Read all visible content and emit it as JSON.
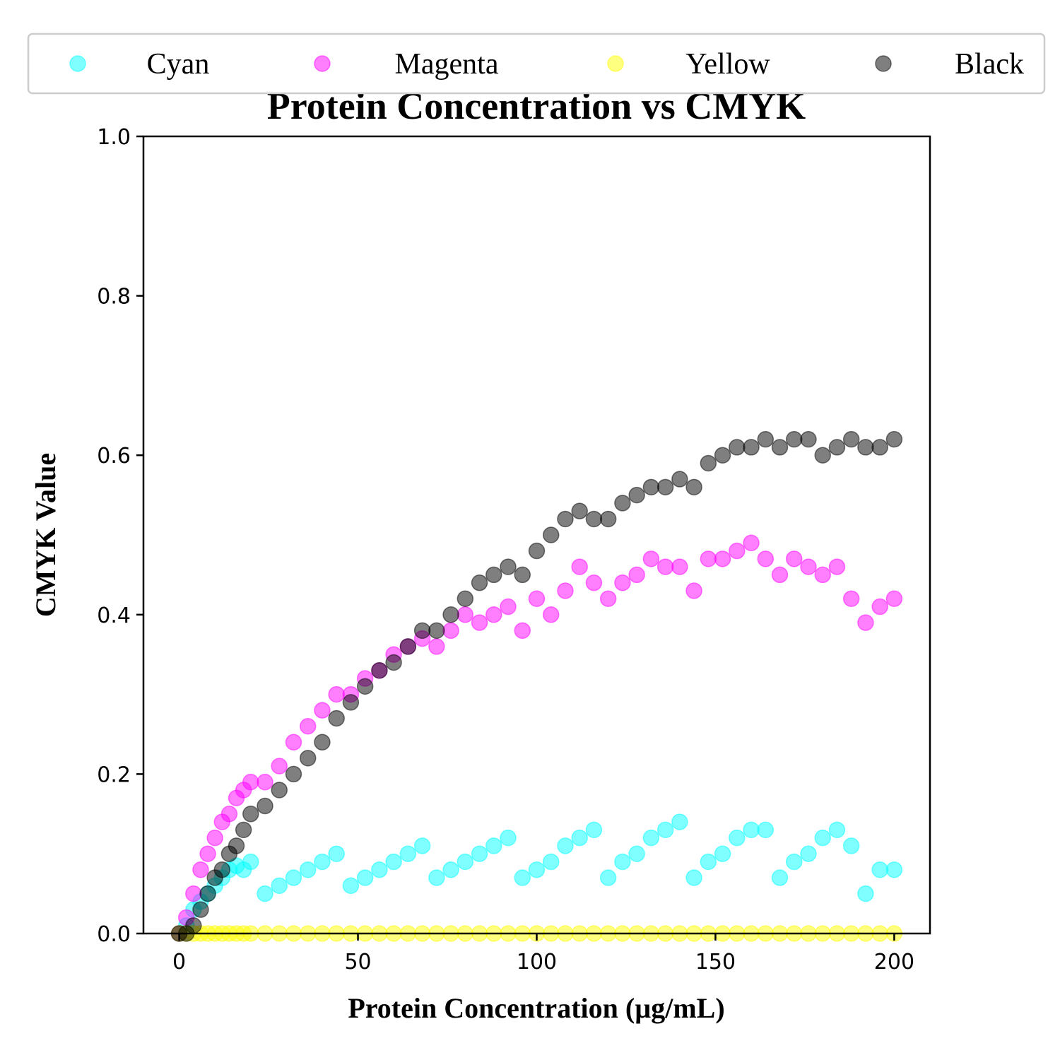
{
  "chart_data": {
    "type": "scatter",
    "title": "Protein Concentration vs CMYK",
    "xlabel": "Protein Concentration (µg/mL)",
    "ylabel": "CMYK Value",
    "xlim": [
      -10,
      210
    ],
    "ylim": [
      0,
      1.0
    ],
    "xticks": [
      "0",
      "50",
      "100",
      "150",
      "200"
    ],
    "yticks": [
      "0.0",
      "0.2",
      "0.4",
      "0.6",
      "0.8",
      "1.0"
    ],
    "grid": false,
    "legend_position": "top",
    "series": [
      {
        "name": "Cyan",
        "color": "#00ffff",
        "x": [
          0,
          2,
          4,
          6,
          8,
          10,
          12,
          14,
          16,
          18,
          20,
          24,
          28,
          32,
          36,
          40,
          44,
          48,
          52,
          56,
          60,
          64,
          68,
          72,
          76,
          80,
          84,
          88,
          92,
          96,
          100,
          104,
          108,
          112,
          116,
          120,
          124,
          128,
          132,
          136,
          140,
          144,
          148,
          152,
          156,
          160,
          164,
          168,
          172,
          176,
          180,
          184,
          188,
          192,
          196,
          200
        ],
        "y": [
          0.0,
          0.01,
          0.03,
          0.04,
          0.05,
          0.06,
          0.07,
          0.08,
          0.085,
          0.08,
          0.09,
          0.05,
          0.06,
          0.07,
          0.08,
          0.09,
          0.1,
          0.06,
          0.07,
          0.08,
          0.09,
          0.1,
          0.11,
          0.07,
          0.08,
          0.09,
          0.1,
          0.11,
          0.12,
          0.07,
          0.08,
          0.09,
          0.11,
          0.12,
          0.13,
          0.07,
          0.09,
          0.1,
          0.12,
          0.13,
          0.14,
          0.07,
          0.09,
          0.1,
          0.12,
          0.13,
          0.13,
          0.07,
          0.09,
          0.1,
          0.12,
          0.13,
          0.11,
          0.05,
          0.08,
          0.08
        ]
      },
      {
        "name": "Magenta",
        "color": "#ff00ff",
        "x": [
          0,
          2,
          4,
          6,
          8,
          10,
          12,
          14,
          16,
          18,
          20,
          24,
          28,
          32,
          36,
          40,
          44,
          48,
          52,
          56,
          60,
          64,
          68,
          72,
          76,
          80,
          84,
          88,
          92,
          96,
          100,
          104,
          108,
          112,
          116,
          120,
          124,
          128,
          132,
          136,
          140,
          144,
          148,
          152,
          156,
          160,
          164,
          168,
          172,
          176,
          180,
          184,
          188,
          192,
          196,
          200
        ],
        "y": [
          0.0,
          0.02,
          0.05,
          0.08,
          0.1,
          0.12,
          0.14,
          0.15,
          0.17,
          0.18,
          0.19,
          0.19,
          0.21,
          0.24,
          0.26,
          0.28,
          0.3,
          0.3,
          0.32,
          0.33,
          0.35,
          0.36,
          0.37,
          0.36,
          0.38,
          0.4,
          0.39,
          0.4,
          0.41,
          0.38,
          0.42,
          0.4,
          0.43,
          0.46,
          0.44,
          0.42,
          0.44,
          0.45,
          0.47,
          0.46,
          0.46,
          0.43,
          0.47,
          0.47,
          0.48,
          0.49,
          0.47,
          0.45,
          0.47,
          0.46,
          0.45,
          0.46,
          0.42,
          0.39,
          0.41,
          0.42
        ]
      },
      {
        "name": "Yellow",
        "color": "#ffff00",
        "x": [
          0,
          2,
          4,
          6,
          8,
          10,
          12,
          14,
          16,
          18,
          20,
          24,
          28,
          32,
          36,
          40,
          44,
          48,
          52,
          56,
          60,
          64,
          68,
          72,
          76,
          80,
          84,
          88,
          92,
          96,
          100,
          104,
          108,
          112,
          116,
          120,
          124,
          128,
          132,
          136,
          140,
          144,
          148,
          152,
          156,
          160,
          164,
          168,
          172,
          176,
          180,
          184,
          188,
          192,
          196,
          200
        ],
        "y": [
          0.0,
          0.0,
          0.0,
          0.0,
          0.0,
          0.0,
          0.0,
          0.0,
          0.0,
          0.0,
          0.0,
          0.0,
          0.0,
          0.0,
          0.0,
          0.0,
          0.0,
          0.0,
          0.0,
          0.0,
          0.0,
          0.0,
          0.0,
          0.0,
          0.0,
          0.0,
          0.0,
          0.0,
          0.0,
          0.0,
          0.0,
          0.0,
          0.0,
          0.0,
          0.0,
          0.0,
          0.0,
          0.0,
          0.0,
          0.0,
          0.0,
          0.0,
          0.0,
          0.0,
          0.0,
          0.0,
          0.0,
          0.0,
          0.0,
          0.0,
          0.0,
          0.0,
          0.0,
          0.0,
          0.0,
          0.0
        ]
      },
      {
        "name": "Black",
        "color": "#000000",
        "x": [
          0,
          2,
          4,
          6,
          8,
          10,
          12,
          14,
          16,
          18,
          20,
          24,
          28,
          32,
          36,
          40,
          44,
          48,
          52,
          56,
          60,
          64,
          68,
          72,
          76,
          80,
          84,
          88,
          92,
          96,
          100,
          104,
          108,
          112,
          116,
          120,
          124,
          128,
          132,
          136,
          140,
          144,
          148,
          152,
          156,
          160,
          164,
          168,
          172,
          176,
          180,
          184,
          188,
          192,
          196,
          200
        ],
        "y": [
          0.0,
          0.0,
          0.01,
          0.03,
          0.05,
          0.07,
          0.08,
          0.1,
          0.11,
          0.13,
          0.15,
          0.16,
          0.18,
          0.2,
          0.22,
          0.24,
          0.27,
          0.29,
          0.31,
          0.33,
          0.34,
          0.36,
          0.38,
          0.38,
          0.4,
          0.42,
          0.44,
          0.45,
          0.46,
          0.45,
          0.48,
          0.5,
          0.52,
          0.53,
          0.52,
          0.52,
          0.54,
          0.55,
          0.56,
          0.56,
          0.57,
          0.56,
          0.59,
          0.6,
          0.61,
          0.61,
          0.62,
          0.61,
          0.62,
          0.62,
          0.6,
          0.61,
          0.62,
          0.61,
          0.61,
          0.62
        ]
      }
    ]
  }
}
